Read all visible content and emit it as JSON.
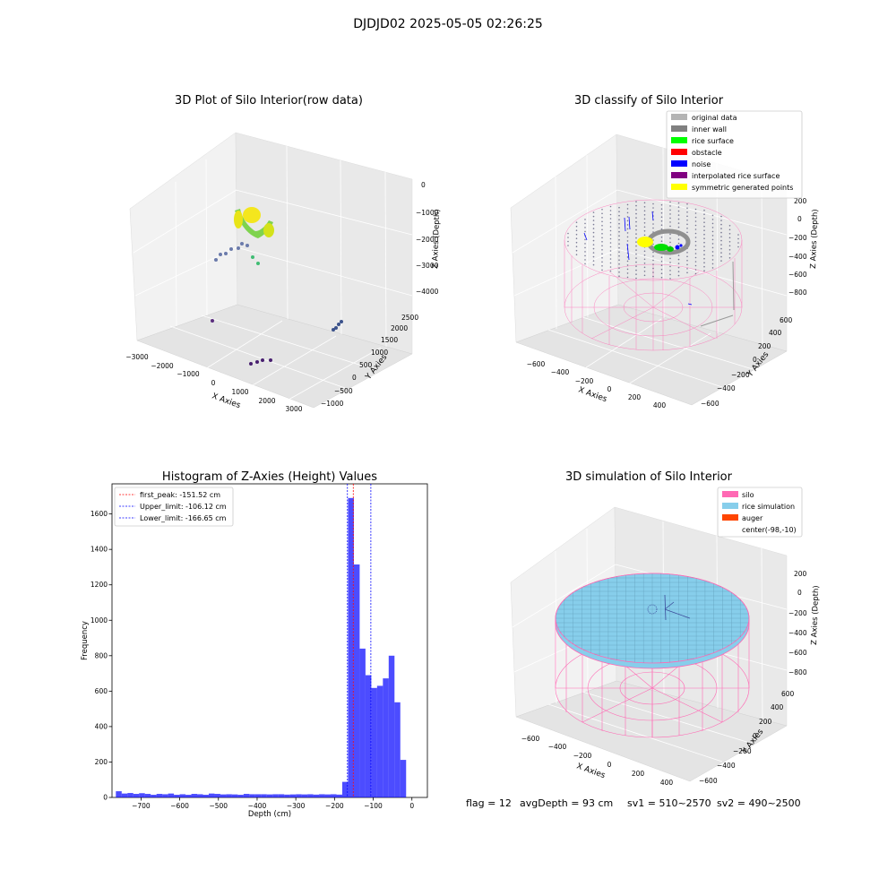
{
  "figure": {
    "suptitle": "DJDJD02 2025-05-05 02:26:25",
    "footer": {
      "flag": "flag = 12",
      "avg_depth": "avgDepth = 93 cm",
      "sv1": "sv1 = 510~2570",
      "sv2": "sv2 = 490~2500"
    }
  },
  "chart_data": [
    {
      "type": "scatter",
      "projection": "3d",
      "title": "3D Plot of Silo Interior(row data)",
      "xlabel": "X Axies",
      "ylabel": "Y Axies",
      "zlabel": "Z Axies (Depth)",
      "x_ticks": [
        "−3000",
        "−2000",
        "−1000",
        "0",
        "1000",
        "2000",
        "3000"
      ],
      "y_ticks": [
        "−1000",
        "−500",
        "0",
        "500",
        "1000",
        "1500",
        "2000",
        "2500"
      ],
      "z_ticks": [
        "0",
        "−1000",
        "−2000",
        "−3000",
        "−4000"
      ],
      "xlim": [
        -3000,
        3000
      ],
      "ylim": [
        -1000,
        2500
      ],
      "zlim": [
        -4500,
        0
      ],
      "colormap": "viridis",
      "grid": true
    },
    {
      "type": "scatter",
      "projection": "3d",
      "title": "3D classify of Silo Interior",
      "xlabel": "X Axies",
      "ylabel": "Y Axies",
      "zlabel": "Z Axies (Depth)",
      "x_ticks": [
        "−600",
        "−400",
        "−200",
        "0",
        "200",
        "400"
      ],
      "y_ticks": [
        "−600",
        "−400",
        "−200",
        "0",
        "200",
        "400",
        "600"
      ],
      "z_ticks": [
        "200",
        "0",
        "−200",
        "−400",
        "−600",
        "−800"
      ],
      "legend_position": "top-right",
      "legend": [
        {
          "label": "original data",
          "color": "#b4b4b4"
        },
        {
          "label": "inner wall",
          "color": "#808080"
        },
        {
          "label": "rice surface",
          "color": "#00ff00"
        },
        {
          "label": "obstacle",
          "color": "#ff0000"
        },
        {
          "label": "noise",
          "color": "#0000ff"
        },
        {
          "label": "interpolated rice surface",
          "color": "#800080"
        },
        {
          "label": "symmetric generated points",
          "color": "#ffff00"
        }
      ],
      "wall_color": "#ff69b4",
      "grid": true
    },
    {
      "type": "bar",
      "title": "Histogram of Z-Axies (Height) Values",
      "xlabel": "Depth (cm)",
      "ylabel": "Frequency",
      "x_ticks": [
        "−700",
        "−600",
        "−500",
        "−400",
        "−300",
        "−200",
        "−100",
        "0"
      ],
      "y_ticks": [
        "0",
        "200",
        "400",
        "600",
        "800",
        "1000",
        "1200",
        "1400",
        "1600"
      ],
      "xlim": [
        -775,
        40
      ],
      "ylim": [
        0,
        1770
      ],
      "bin_width": 15,
      "bar_color": "#0000ff",
      "bins": [
        {
          "x": -757.5,
          "count": 35
        },
        {
          "x": -742.5,
          "count": 22
        },
        {
          "x": -727.5,
          "count": 25
        },
        {
          "x": -712.5,
          "count": 20
        },
        {
          "x": -697.5,
          "count": 24
        },
        {
          "x": -682.5,
          "count": 20
        },
        {
          "x": -667.5,
          "count": 15
        },
        {
          "x": -652.5,
          "count": 20
        },
        {
          "x": -637.5,
          "count": 18
        },
        {
          "x": -622.5,
          "count": 22
        },
        {
          "x": -607.5,
          "count": 15
        },
        {
          "x": -592.5,
          "count": 18
        },
        {
          "x": -577.5,
          "count": 15
        },
        {
          "x": -562.5,
          "count": 20
        },
        {
          "x": -547.5,
          "count": 18
        },
        {
          "x": -532.5,
          "count": 15
        },
        {
          "x": -517.5,
          "count": 22
        },
        {
          "x": -502.5,
          "count": 20
        },
        {
          "x": -487.5,
          "count": 17
        },
        {
          "x": -472.5,
          "count": 18
        },
        {
          "x": -457.5,
          "count": 17
        },
        {
          "x": -442.5,
          "count": 15
        },
        {
          "x": -427.5,
          "count": 20
        },
        {
          "x": -412.5,
          "count": 18
        },
        {
          "x": -397.5,
          "count": 18
        },
        {
          "x": -382.5,
          "count": 18
        },
        {
          "x": -367.5,
          "count": 17
        },
        {
          "x": -352.5,
          "count": 18
        },
        {
          "x": -337.5,
          "count": 18
        },
        {
          "x": -322.5,
          "count": 16
        },
        {
          "x": -307.5,
          "count": 17
        },
        {
          "x": -292.5,
          "count": 18
        },
        {
          "x": -277.5,
          "count": 17
        },
        {
          "x": -262.5,
          "count": 18
        },
        {
          "x": -247.5,
          "count": 16
        },
        {
          "x": -232.5,
          "count": 18
        },
        {
          "x": -217.5,
          "count": 17
        },
        {
          "x": -202.5,
          "count": 18
        },
        {
          "x": -187.5,
          "count": 16
        },
        {
          "x": -172.5,
          "count": 88
        },
        {
          "x": -157.5,
          "count": 1690
        },
        {
          "x": -142.5,
          "count": 1315
        },
        {
          "x": -127.5,
          "count": 840
        },
        {
          "x": -112.5,
          "count": 690
        },
        {
          "x": -97.5,
          "count": 618
        },
        {
          "x": -82.5,
          "count": 630
        },
        {
          "x": -67.5,
          "count": 672
        },
        {
          "x": -52.5,
          "count": 800
        },
        {
          "x": -37.5,
          "count": 537
        },
        {
          "x": -22.5,
          "count": 212
        }
      ],
      "vlines": [
        {
          "label": "first_peak: -151.52 cm",
          "x": -151.52,
          "color": "#ff0000"
        },
        {
          "label": "Upper_limit: -106.12 cm",
          "x": -106.12,
          "color": "#0000ff"
        },
        {
          "label": "Lower_limit: -166.65 cm",
          "x": -166.65,
          "color": "#0000ff"
        }
      ],
      "legend_position": "top-left"
    },
    {
      "type": "scatter",
      "projection": "3d",
      "title": "3D simulation of Silo Interior",
      "xlabel": "X Axies",
      "ylabel": "Y Axies",
      "zlabel": "Z Axies (Depth)",
      "x_ticks": [
        "−600",
        "−400",
        "−200",
        "0",
        "200",
        "400"
      ],
      "y_ticks": [
        "−600",
        "−400",
        "−200",
        "0",
        "200",
        "400",
        "600"
      ],
      "z_ticks": [
        "200",
        "0",
        "−200",
        "−400",
        "−600",
        "−800"
      ],
      "legend_position": "top-right",
      "legend": [
        {
          "label": "silo",
          "color": "#ff69b4"
        },
        {
          "label": "rice simulation",
          "color": "#87ceeb"
        },
        {
          "label": "auger",
          "color": "#ff4500"
        },
        {
          "label": "center(-98,-10)",
          "color": ""
        }
      ],
      "grid": true
    }
  ]
}
